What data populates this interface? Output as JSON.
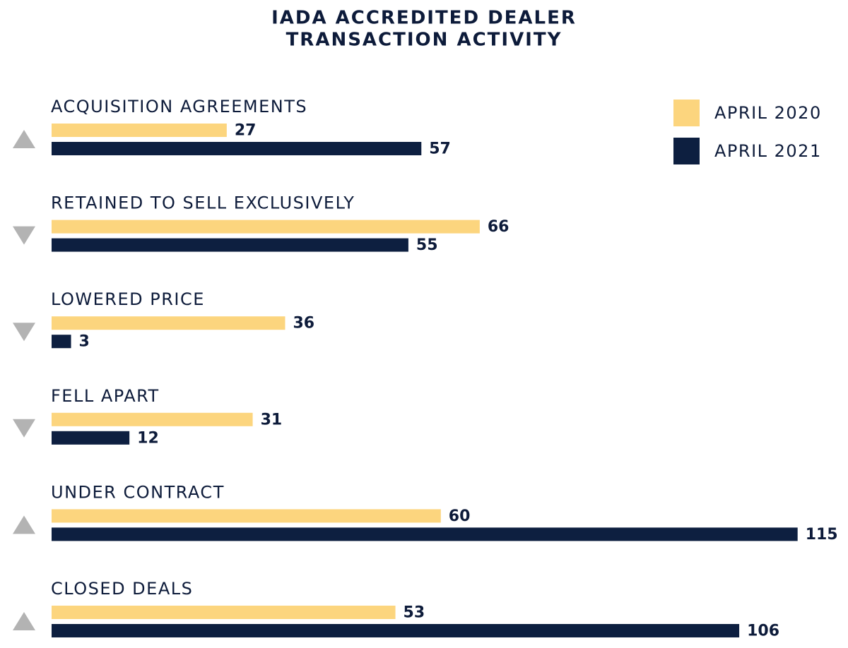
{
  "chart_data": {
    "type": "bar",
    "orientation": "horizontal",
    "title": [
      "IADA ACCREDITED DEALER",
      "TRANSACTION ACTIVITY"
    ],
    "categories": [
      "ACQUISITION AGREEMENTS",
      "RETAINED TO SELL EXCLUSIVELY",
      "LOWERED PRICE",
      "FELL APART",
      "UNDER CONTRACT",
      "CLOSED DEALS"
    ],
    "series": [
      {
        "name": "APRIL 2020",
        "color": "#fcd57e",
        "values": [
          27,
          66,
          36,
          31,
          60,
          53
        ]
      },
      {
        "name": "APRIL 2021",
        "color": "#0d1f40",
        "values": [
          57,
          55,
          3,
          12,
          115,
          106
        ]
      }
    ],
    "trend": [
      "up",
      "down",
      "down",
      "down",
      "up",
      "up"
    ],
    "trend_icon_color": "#b3b3b3",
    "xlim": [
      0,
      115
    ],
    "grid": false,
    "legend_position": "top-right"
  }
}
